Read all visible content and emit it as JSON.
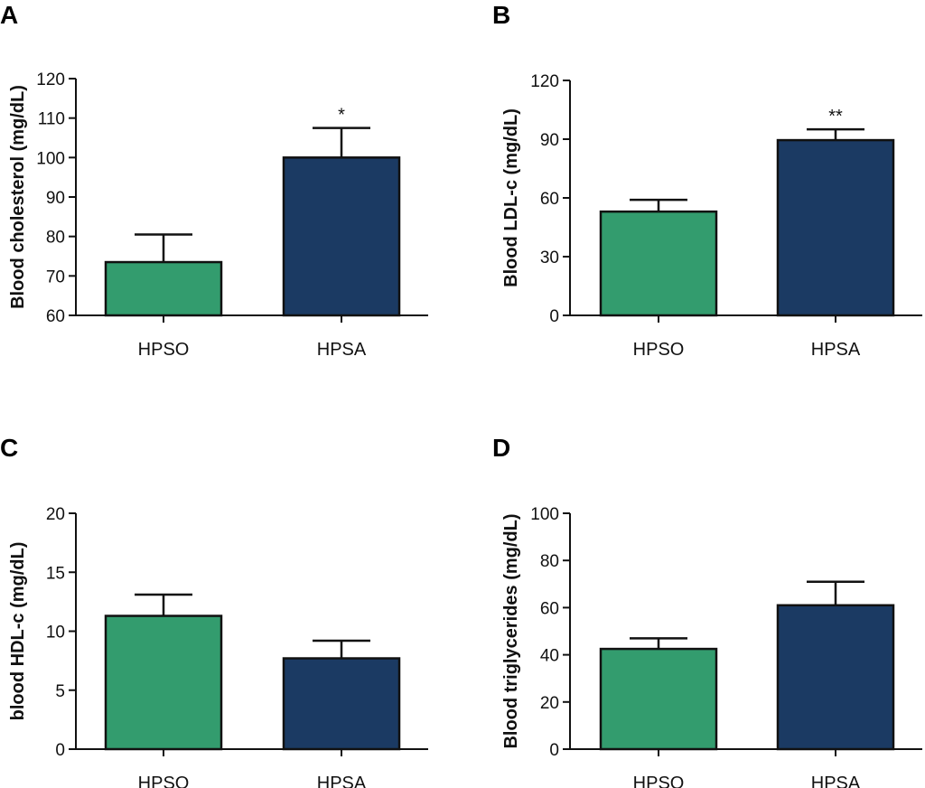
{
  "colors": {
    "HPSO": "#339c6e",
    "HPSA": "#1b3a63",
    "axis": "#111111"
  },
  "chart_data": [
    {
      "panel": "A",
      "type": "bar",
      "categories": [
        "HPSO",
        "HPSA"
      ],
      "values": [
        73.5,
        100
      ],
      "errors": [
        7,
        7.5
      ],
      "significance": [
        "",
        "*"
      ],
      "ylabel": "Blood cholesterol (mg/dL)",
      "xlabel": "",
      "ylim": [
        60,
        120
      ],
      "yticks": [
        60,
        70,
        80,
        90,
        100,
        110,
        120
      ]
    },
    {
      "panel": "B",
      "type": "bar",
      "categories": [
        "HPSO",
        "HPSA"
      ],
      "values": [
        53,
        89.5
      ],
      "errors": [
        6,
        5.5
      ],
      "significance": [
        "",
        "**"
      ],
      "ylabel": "Blood LDL-c (mg/dL)",
      "xlabel": "",
      "ylim": [
        0,
        120
      ],
      "yticks": [
        0,
        30,
        60,
        90,
        120
      ]
    },
    {
      "panel": "C",
      "type": "bar",
      "categories": [
        "HPSO",
        "HPSA"
      ],
      "values": [
        11.3,
        7.7
      ],
      "errors": [
        1.8,
        1.5
      ],
      "significance": [
        "",
        ""
      ],
      "ylabel": "blood HDL-c (mg/dL)",
      "xlabel": "",
      "ylim": [
        0,
        20
      ],
      "yticks": [
        0,
        5,
        10,
        15,
        20
      ]
    },
    {
      "panel": "D",
      "type": "bar",
      "categories": [
        "HPSO",
        "HPSA"
      ],
      "values": [
        42.5,
        61
      ],
      "errors": [
        4.5,
        10
      ],
      "significance": [
        "",
        ""
      ],
      "ylabel": "Blood triglycerides (mg/dL)",
      "xlabel": "",
      "ylim": [
        0,
        100
      ],
      "yticks": [
        0,
        20,
        40,
        60,
        80,
        100
      ]
    }
  ]
}
